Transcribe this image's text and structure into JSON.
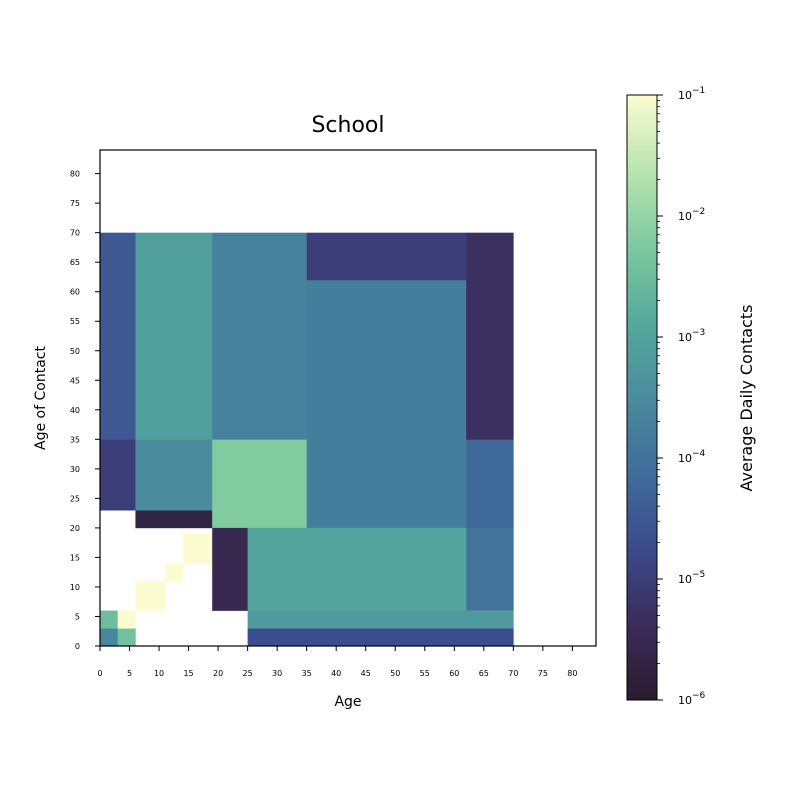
{
  "chart_data": {
    "type": "heatmap",
    "title": "School",
    "xlabel": "Age",
    "ylabel": "Age of Contact",
    "x_tick_labels": [
      "0",
      "5",
      "10",
      "15",
      "20",
      "25",
      "30",
      "35",
      "40",
      "45",
      "50",
      "55",
      "60",
      "65",
      "70",
      "75",
      "80"
    ],
    "y_tick_labels": [
      "0",
      "5",
      "10",
      "15",
      "20",
      "25",
      "30",
      "35",
      "40",
      "45",
      "50",
      "55",
      "60",
      "65",
      "70",
      "75",
      "80"
    ],
    "xlim": [
      0,
      84
    ],
    "ylim": [
      0,
      84
    ],
    "colorbar": {
      "label": "Average Daily Contacts",
      "scale": "log",
      "range": [
        1e-06,
        0.1
      ],
      "tick_labels": [
        {
          "base": "10",
          "exp": "−1"
        },
        {
          "base": "10",
          "exp": "−2"
        },
        {
          "base": "10",
          "exp": "−3"
        },
        {
          "base": "10",
          "exp": "−4"
        },
        {
          "base": "10",
          "exp": "−5"
        },
        {
          "base": "10",
          "exp": "−6"
        }
      ],
      "colormap": [
        "#2a1c2e",
        "#3b2c5a",
        "#3b4a8c",
        "#3f6d9b",
        "#4a8c9d",
        "#55aa9c",
        "#7dc9a0",
        "#b9e5b0",
        "#fbfccf"
      ]
    },
    "regions": [
      {
        "x": [
          0,
          3
        ],
        "y": [
          0,
          3
        ],
        "log10": -3.6
      },
      {
        "x": [
          3,
          6
        ],
        "y": [
          0,
          3
        ],
        "log10": -2.4
      },
      {
        "x": [
          0,
          3
        ],
        "y": [
          3,
          6
        ],
        "log10": -2.5
      },
      {
        "x": [
          3,
          6
        ],
        "y": [
          3,
          6
        ],
        "log10": -1.0
      },
      {
        "x": [
          6,
          11
        ],
        "y": [
          6,
          11
        ],
        "log10": -1.0
      },
      {
        "x": [
          11,
          14
        ],
        "y": [
          11,
          14
        ],
        "log10": -1.0
      },
      {
        "x": [
          14,
          19
        ],
        "y": [
          14,
          19
        ],
        "log10": -1.0
      },
      {
        "x": [
          6,
          20
        ],
        "y": [
          20,
          23
        ],
        "log10": -5.7
      },
      {
        "x": [
          0,
          6
        ],
        "y": [
          23,
          35
        ],
        "log10": -5.0
      },
      {
        "x": [
          6,
          19
        ],
        "y": [
          23,
          35
        ],
        "log10": -3.5
      },
      {
        "x": [
          19,
          35
        ],
        "y": [
          20,
          35
        ],
        "log10": -2.2
      },
      {
        "x": [
          0,
          6
        ],
        "y": [
          35,
          70
        ],
        "log10": -4.5
      },
      {
        "x": [
          6,
          19
        ],
        "y": [
          35,
          70
        ],
        "log10": -3.1
      },
      {
        "x": [
          19,
          35
        ],
        "y": [
          35,
          70
        ],
        "log10": -3.7
      },
      {
        "x": [
          35,
          62
        ],
        "y": [
          20,
          62
        ],
        "log10": -3.8
      },
      {
        "x": [
          35,
          62
        ],
        "y": [
          62,
          70
        ],
        "log10": -5.0
      },
      {
        "x": [
          62,
          70
        ],
        "y": [
          20,
          35
        ],
        "log10": -4.2
      },
      {
        "x": [
          62,
          70
        ],
        "y": [
          35,
          70
        ],
        "log10": -5.3
      },
      {
        "x": [
          19,
          25
        ],
        "y": [
          6,
          20
        ],
        "log10": -5.5
      },
      {
        "x": [
          25,
          62
        ],
        "y": [
          6,
          20
        ],
        "log10": -3.0
      },
      {
        "x": [
          62,
          70
        ],
        "y": [
          6,
          20
        ],
        "log10": -4.0
      },
      {
        "x": [
          25,
          70
        ],
        "y": [
          0,
          3
        ],
        "log10": -4.7
      },
      {
        "x": [
          25,
          70
        ],
        "y": [
          3,
          6
        ],
        "log10": -3.2
      }
    ]
  }
}
